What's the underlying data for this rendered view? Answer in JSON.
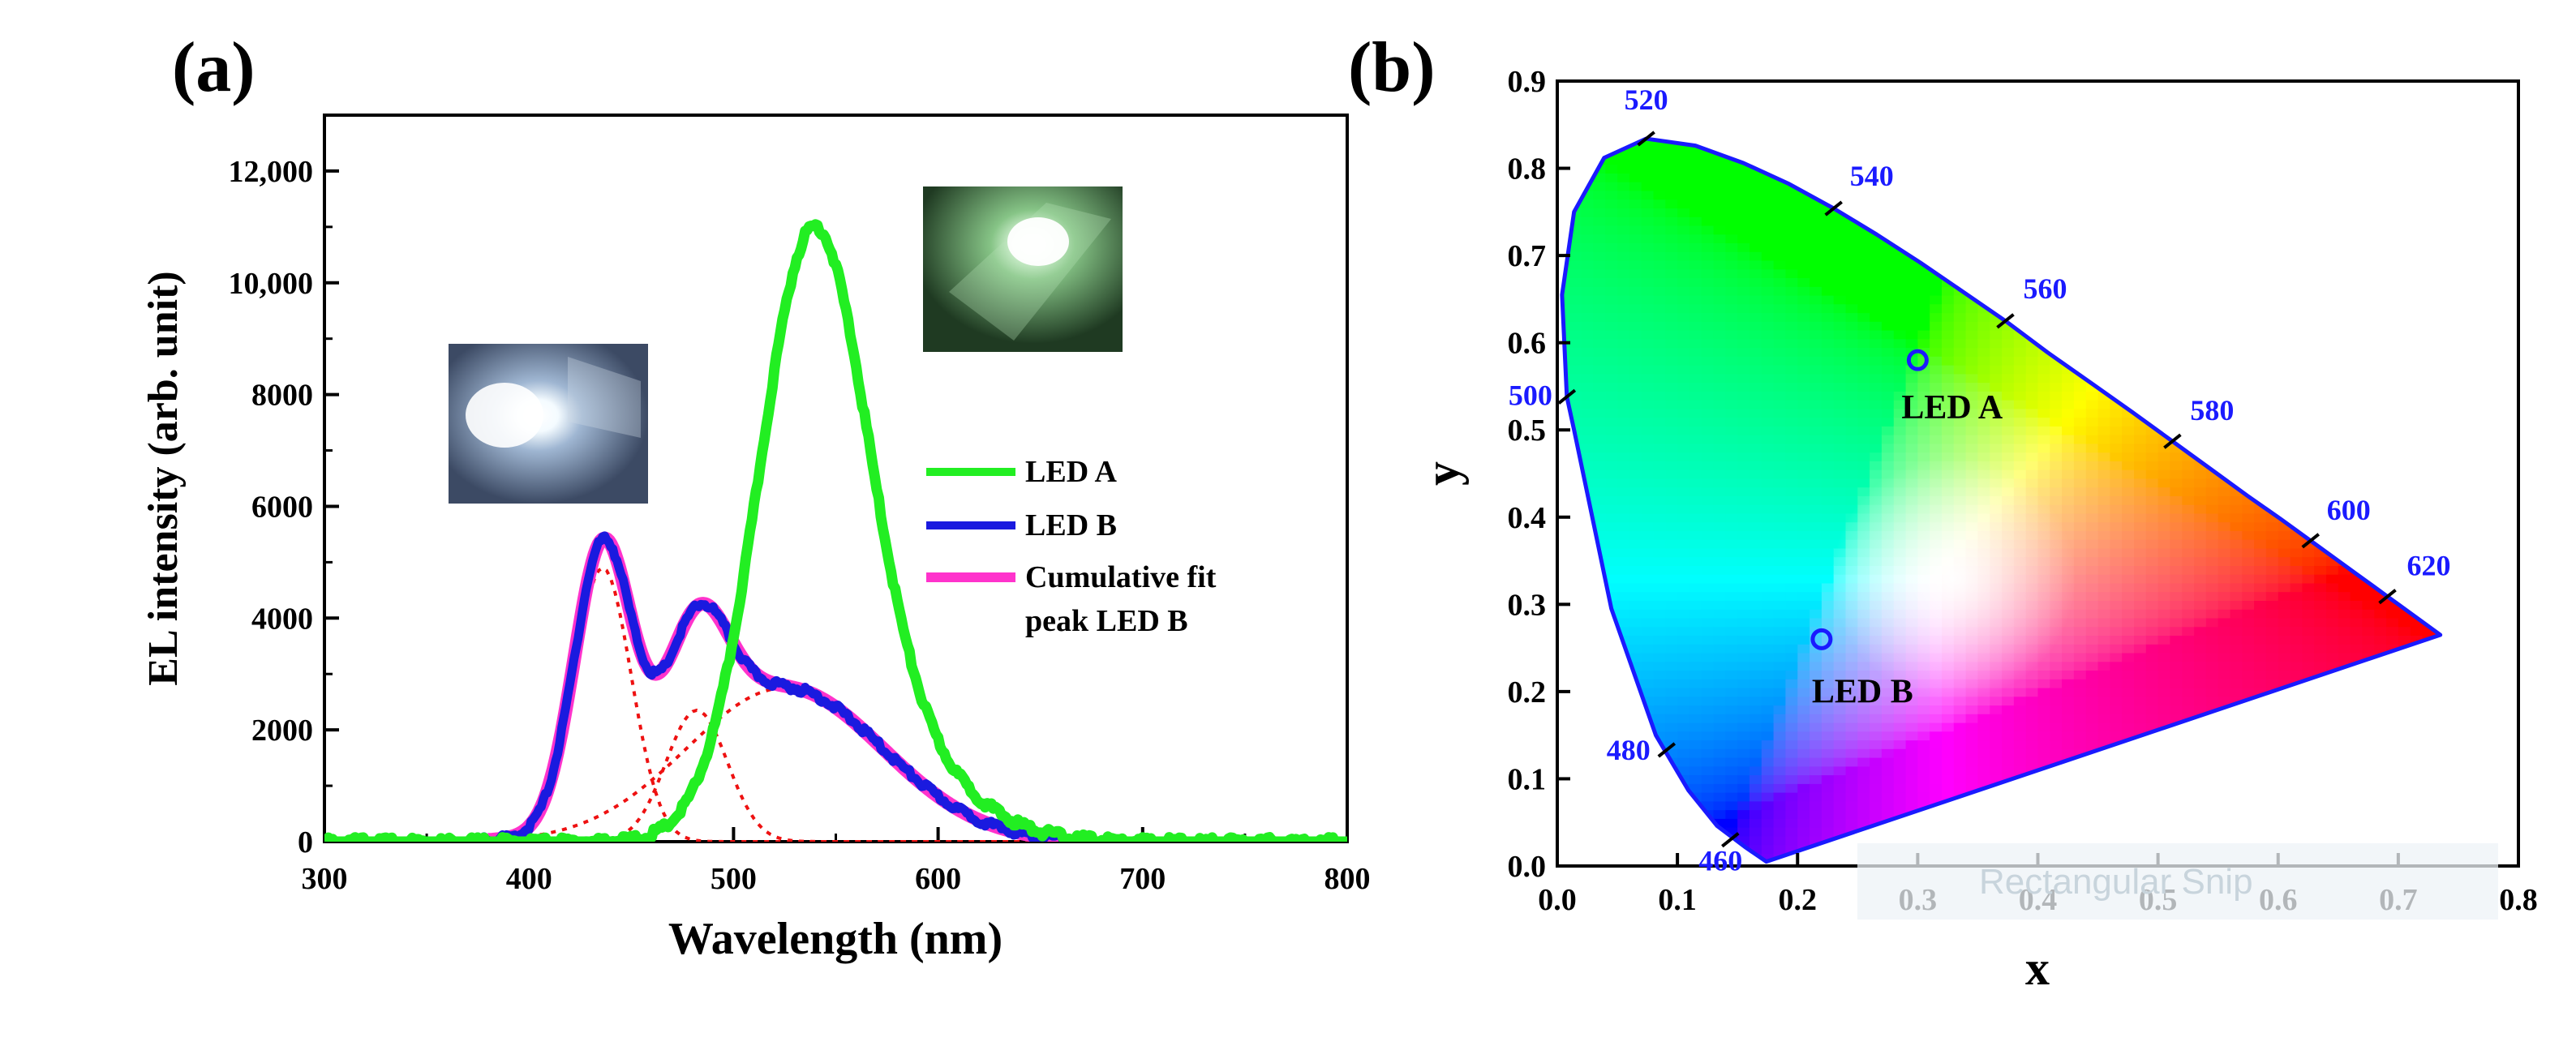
{
  "chart_data": [
    {
      "type": "line",
      "panel_label": "(a)",
      "xlabel": "Wavelength (nm)",
      "ylabel": "EL intensity (arb. unit)",
      "xlim": [
        300,
        800
      ],
      "ylim": [
        0,
        13000
      ],
      "x_ticks": [
        "300",
        "400",
        "500",
        "600",
        "700",
        "800"
      ],
      "y_ticks": [
        "0",
        "2000",
        "4000",
        "6000",
        "8000",
        "10,000",
        "12,000"
      ],
      "legend_position": "center-right",
      "legend": [
        "LED A",
        "LED B",
        "Cumulative fit",
        "peak LED B"
      ],
      "series": [
        {
          "name": "LED A",
          "color": "#22ee22",
          "gaussians": [
            {
              "a": 9800,
              "mu": 538,
              "sigma": 26
            },
            {
              "a": 1700,
              "mu": 570,
              "sigma": 38
            }
          ]
        },
        {
          "name": "LED B",
          "color": "#1a1adf",
          "gaussians": [
            {
              "a": 4900,
              "mu": 436,
              "sigma": 14
            },
            {
              "a": 2350,
              "mu": 482,
              "sigma": 15
            },
            {
              "a": 2750,
              "mu": 525,
              "sigma": 48
            }
          ]
        },
        {
          "name": "Cumulative fit peak LED B",
          "color": "#ff33cc"
        },
        {
          "name": "Fit peaks (dotted)",
          "color": "#ee1111",
          "peaks": [
            {
              "a": 4900,
              "mu": 436,
              "sigma": 14
            },
            {
              "a": 2350,
              "mu": 482,
              "sigma": 15
            },
            {
              "a": 2750,
              "mu": 525,
              "sigma": 48
            }
          ]
        }
      ],
      "insets": [
        "LED B device photo (bluish-white emission)",
        "LED A device photo (green emission)"
      ]
    },
    {
      "type": "scatter",
      "panel_label": "(b)",
      "xlabel": "x",
      "ylabel": "y",
      "xlim": [
        0.0,
        0.8
      ],
      "ylim": [
        0.0,
        0.9
      ],
      "x_ticks": [
        "0.0",
        "0.1",
        "0.2",
        "0.3",
        "0.4",
        "0.5",
        "0.6",
        "0.7",
        "0.8"
      ],
      "y_ticks": [
        "0.0",
        "0.1",
        "0.2",
        "0.3",
        "0.4",
        "0.5",
        "0.6",
        "0.7",
        "0.8",
        "0.9"
      ],
      "locus": [
        [
          0.174,
          0.005
        ],
        [
          0.156,
          0.022
        ],
        [
          0.133,
          0.046
        ],
        [
          0.109,
          0.087
        ],
        [
          0.082,
          0.15
        ],
        [
          0.045,
          0.295
        ],
        [
          0.014,
          0.5
        ],
        [
          0.008,
          0.538
        ],
        [
          0.004,
          0.655
        ],
        [
          0.014,
          0.75
        ],
        [
          0.039,
          0.812
        ],
        [
          0.074,
          0.834
        ],
        [
          0.115,
          0.826
        ],
        [
          0.155,
          0.806
        ],
        [
          0.193,
          0.782
        ],
        [
          0.23,
          0.754
        ],
        [
          0.266,
          0.724
        ],
        [
          0.302,
          0.692
        ],
        [
          0.337,
          0.659
        ],
        [
          0.373,
          0.625
        ],
        [
          0.408,
          0.589
        ],
        [
          0.444,
          0.554
        ],
        [
          0.479,
          0.52
        ],
        [
          0.512,
          0.487
        ],
        [
          0.545,
          0.454
        ],
        [
          0.575,
          0.424
        ],
        [
          0.603,
          0.397
        ],
        [
          0.627,
          0.373
        ],
        [
          0.648,
          0.352
        ],
        [
          0.666,
          0.334
        ],
        [
          0.68,
          0.32
        ],
        [
          0.691,
          0.309
        ],
        [
          0.701,
          0.299
        ],
        [
          0.735,
          0.265
        ]
      ],
      "wavelength_labels": [
        {
          "label": "520",
          "x": 0.074,
          "y": 0.834
        },
        {
          "label": "540",
          "x": 0.23,
          "y": 0.754
        },
        {
          "label": "560",
          "x": 0.373,
          "y": 0.625
        },
        {
          "label": "580",
          "x": 0.512,
          "y": 0.487
        },
        {
          "label": "600",
          "x": 0.627,
          "y": 0.373
        },
        {
          "label": "620",
          "x": 0.691,
          "y": 0.309
        },
        {
          "label": "500",
          "x": 0.008,
          "y": 0.538
        },
        {
          "label": "480",
          "x": 0.091,
          "y": 0.133
        },
        {
          "label": "460",
          "x": 0.144,
          "y": 0.03
        }
      ],
      "points": [
        {
          "name": "LED A",
          "x": 0.3,
          "y": 0.58
        },
        {
          "name": "LED B",
          "x": 0.22,
          "y": 0.26
        }
      ],
      "colors": {
        "axis": "#000000",
        "locus_edge": "#1a1aff",
        "marker": "#1a1aff"
      },
      "overlay_text": "Rectangular Snip"
    }
  ]
}
